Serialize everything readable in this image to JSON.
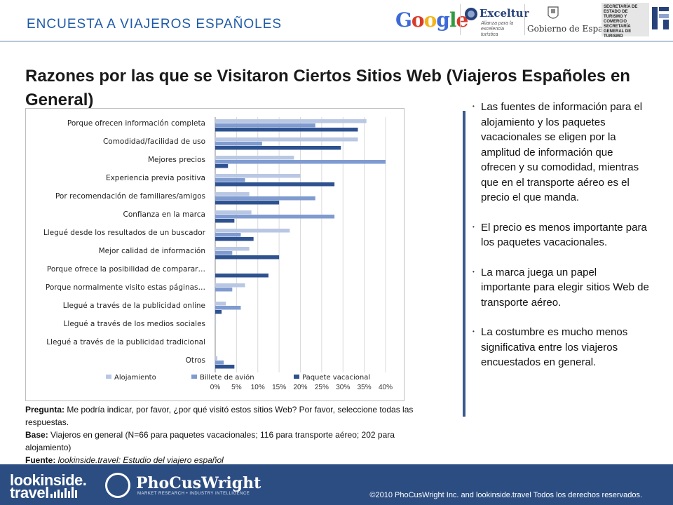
{
  "header": {
    "section_title": "ENCUESTA  A  VIAJEROS ESPAÑOLES",
    "logos": {
      "google": "Google",
      "exceltur": "Exceltur",
      "exceltur_sub": "Alianza para la excelencia turística",
      "gobierno": "Gobierno de España",
      "secretaria": "SECRETARÍA DE ESTADO DE TURISMO Y COMERCIO  SECRETARÍA GENERAL DE TURISMO"
    }
  },
  "main_title": "Razones por las que se Visitaron Ciertos Sitios Web (Viajeros Españoles en General)",
  "chart_data": {
    "type": "bar",
    "orientation": "horizontal",
    "categories": [
      "Porque ofrecen información completa",
      "Comodidad/facilidad de uso",
      "Mejores precios",
      "Experiencia previa positiva",
      "Por recomendación de familiares/amigos",
      "Confianza en la marca",
      "Llegué desde los resultados de un buscador",
      "Mejor calidad de información",
      "Porque ofrece la posibilidad de comparar…",
      "Porque normalmente visito estas páginas…",
      "Llegué a través de la publicidad online",
      "Llegué a través de los medios sociales",
      "Llegué a través de la publicidad tradicional",
      "Otros"
    ],
    "series": [
      {
        "name": "Alojamiento",
        "color": "#b8c7e3",
        "values": [
          35.5,
          33.5,
          18.5,
          20,
          8,
          8.5,
          17.5,
          8,
          0,
          7,
          2.5,
          0.2,
          0,
          0.5
        ]
      },
      {
        "name": "Billete de avión",
        "color": "#7f9bd0",
        "values": [
          23.5,
          11,
          40,
          7,
          23.5,
          28,
          6,
          4,
          0,
          4,
          6,
          0,
          0,
          2
        ]
      },
      {
        "name": "Paquete vacacional",
        "color": "#2e5290",
        "values": [
          33.5,
          29.5,
          3,
          28,
          15,
          4.5,
          9,
          15,
          12.5,
          0,
          1.5,
          0,
          0,
          4.5
        ]
      }
    ],
    "xticks": [
      "0%",
      "5%",
      "10%",
      "15%",
      "20%",
      "25%",
      "30%",
      "35%",
      "40%"
    ],
    "xlim": [
      0,
      40
    ],
    "legend_position": "bottom",
    "grid": true
  },
  "notes": {
    "pregunta_label": "Pregunta:",
    "pregunta": " Me podría indicar, por favor, ¿por qué visitó estos sitios Web? Por favor, seleccione todas las respuestas.",
    "base_label": "Base:",
    "base": " Viajeros en general (N=66 para paquetes vacacionales; 116 para transporte aéreo; 202 para alojamiento)",
    "fuente_label": "Fuente:",
    "fuente": " lookinside.travel: Estudio del viajero español"
  },
  "bullets": [
    "Las fuentes de información para el alojamiento y los paquetes vacacionales se eligen por la amplitud de información que ofrecen y su comodidad, mientras que en el transporte aéreo es el precio el que manda.",
    "El precio es menos importante para los paquetes vacacionales.",
    "La marca juega un papel importante para elegir sitios Web de transporte aéreo.",
    "La costumbre es mucho menos significativa entre los viajeros encuestados en general."
  ],
  "footer": {
    "logo1_line1": "lookinside.",
    "logo1_line2": "travel",
    "logo2": "PhoCusWright",
    "logo2_sub": "MARKET RESEARCH • INDUSTRY INTELLIGENCE",
    "copyright": "©2010 PhoCusWright Inc. and lookinside.travel Todos los derechos reservados."
  }
}
